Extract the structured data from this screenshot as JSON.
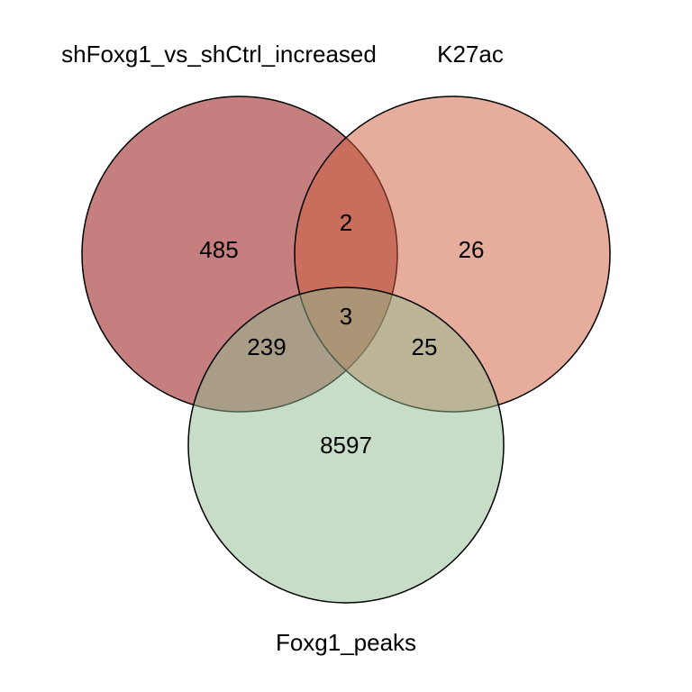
{
  "sets": [
    {
      "name": "shFoxg1_vs_shCtrl_increased",
      "color": "#8b0000"
    },
    {
      "name": "K27ac",
      "color": "#cd5c3c"
    },
    {
      "name": "Foxg1_peaks",
      "color": "#8fbc8f"
    }
  ],
  "regions": {
    "only_a": "485",
    "a_and_b": "2",
    "only_b": "26",
    "a_b_c": "3",
    "a_and_c": "239",
    "b_and_c": "25",
    "only_c": "8597"
  }
}
